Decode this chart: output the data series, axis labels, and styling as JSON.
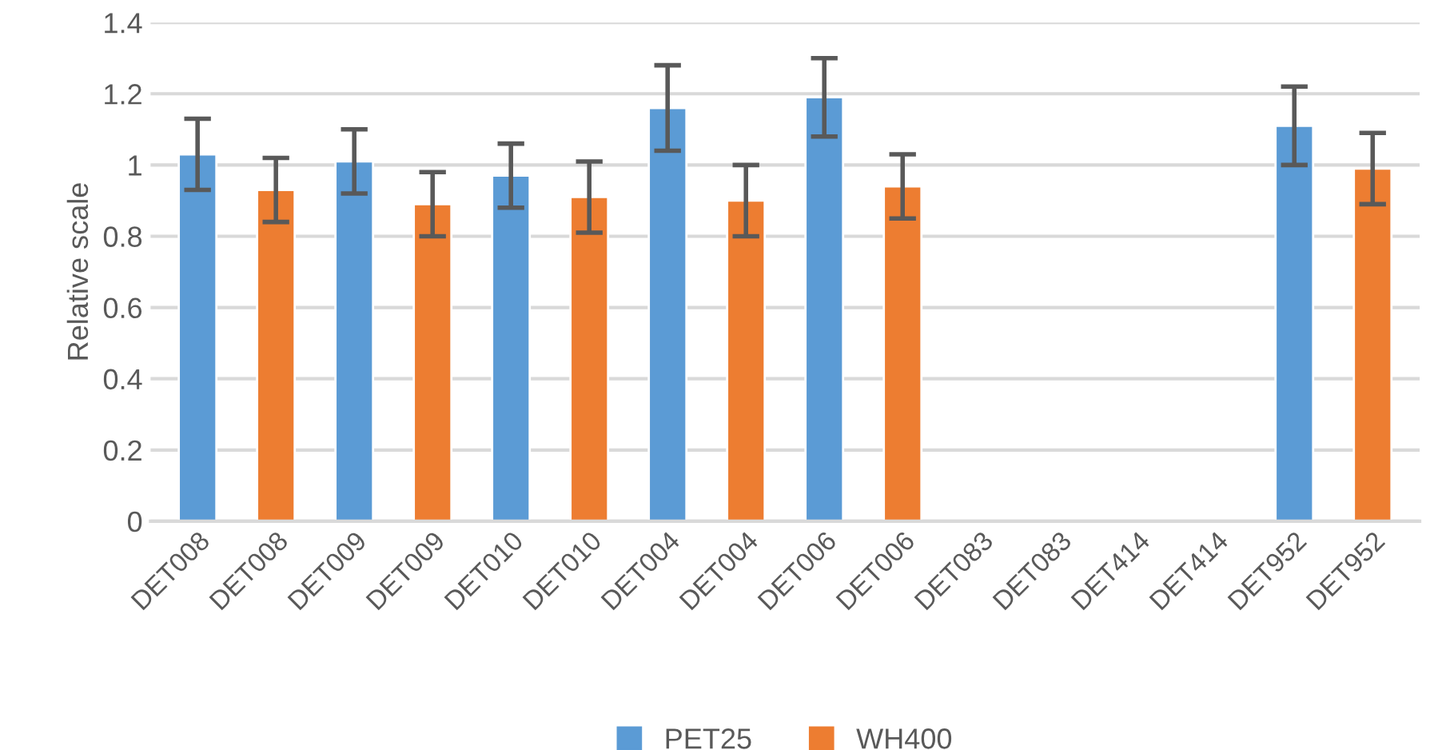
{
  "chart_data": {
    "type": "bar",
    "ylabel": "Relative scale",
    "categories": [
      "DET008",
      "DET008",
      "DET009",
      "DET009",
      "DET010",
      "DET010",
      "DET004",
      "DET004",
      "DET006",
      "DET006",
      "DET083",
      "DET083",
      "DET414",
      "DET414",
      "DET952",
      "DET952"
    ],
    "series": [
      {
        "name": "PET25",
        "color": "#5b9bd5",
        "values": [
          1.03,
          null,
          1.01,
          null,
          0.97,
          null,
          1.16,
          null,
          1.19,
          null,
          null,
          null,
          null,
          null,
          1.11,
          null
        ],
        "errors": [
          0.1,
          null,
          0.09,
          null,
          0.09,
          null,
          0.12,
          null,
          0.11,
          null,
          null,
          null,
          null,
          null,
          0.11,
          null
        ]
      },
      {
        "name": "WH400",
        "color": "#ed7d31",
        "values": [
          null,
          0.93,
          null,
          0.89,
          null,
          0.91,
          null,
          0.9,
          null,
          0.94,
          null,
          null,
          null,
          null,
          null,
          0.99
        ],
        "errors": [
          null,
          0.09,
          null,
          0.09,
          null,
          0.1,
          null,
          0.1,
          null,
          0.09,
          null,
          null,
          null,
          null,
          null,
          0.1
        ]
      }
    ],
    "ylim": [
      0,
      1.4
    ],
    "yticks": [
      0,
      0.2,
      0.4,
      0.6,
      0.8,
      1,
      1.2,
      1.4
    ],
    "grid": "y",
    "legend": "bottom"
  }
}
